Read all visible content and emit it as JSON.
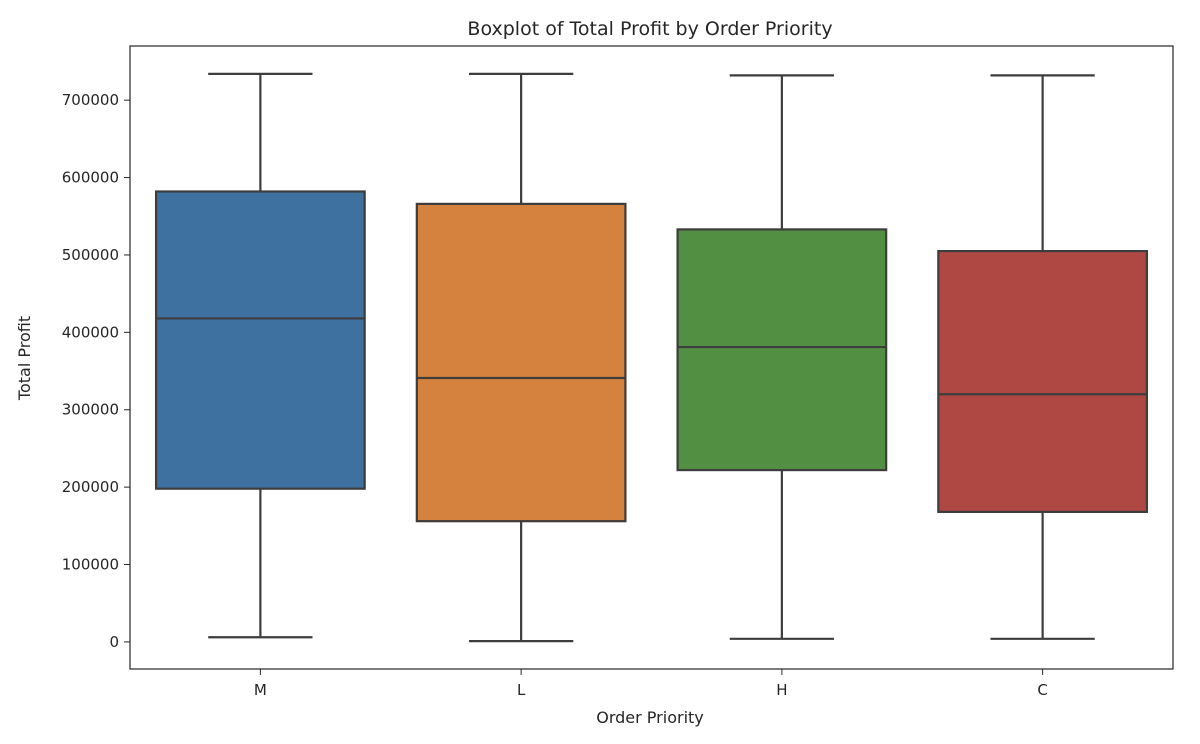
{
  "chart_data": {
    "type": "box",
    "title": "Boxplot of Total Profit by Order Priority",
    "xlabel": "Order Priority",
    "ylabel": "Total Profit",
    "ylim": [
      -35000,
      770000
    ],
    "yticks": [
      0,
      100000,
      200000,
      300000,
      400000,
      500000,
      600000,
      700000
    ],
    "ytick_labels": [
      "0",
      "100000",
      "200000",
      "300000",
      "400000",
      "500000",
      "600000",
      "700000"
    ],
    "grid": false,
    "categories": [
      "M",
      "L",
      "H",
      "C"
    ],
    "series": [
      {
        "category": "M",
        "min": 6000,
        "q1": 198000,
        "median": 418000,
        "q3": 582000,
        "max": 734000,
        "color": "#3F71A0"
      },
      {
        "category": "L",
        "min": 1000,
        "q1": 156000,
        "median": 341000,
        "q3": 566000,
        "max": 734000,
        "color": "#D4823D"
      },
      {
        "category": "H",
        "min": 4000,
        "q1": 222000,
        "median": 381000,
        "q3": 533000,
        "max": 732000,
        "color": "#528F43"
      },
      {
        "category": "C",
        "min": 4000,
        "q1": 168000,
        "median": 320000,
        "q3": 505000,
        "max": 732000,
        "color": "#AF4843"
      }
    ],
    "line_color": "#3d3d3d"
  }
}
